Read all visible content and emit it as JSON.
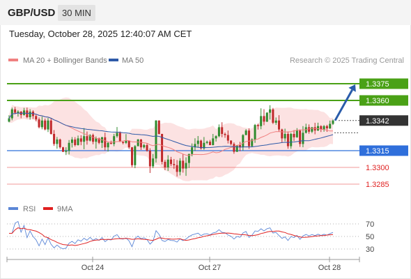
{
  "header": {
    "symbol": "GBP/USD",
    "timeframe": "30 MIN"
  },
  "timestamp": "Tuesday, October 28, 2025 12:40:07 AM CET",
  "legend": {
    "ma20_bb": {
      "label": "MA 20 + Bollinger Bands",
      "color": "#f08080"
    },
    "ma50": {
      "label": "MA 50",
      "color": "#2e5aa8"
    },
    "rsi": {
      "label": "RSI",
      "color": "#5b86d6"
    },
    "ma9": {
      "label": "9MA",
      "color": "#e02020"
    }
  },
  "copyright": "Research © 2025 Trading Central",
  "chart_data": [
    {
      "type": "candlestick",
      "series": [
        {
          "name": "MA 20 + Bollinger Bands"
        },
        {
          "name": "MA 50"
        }
      ],
      "x_ticks": [
        "Oct 24",
        "Oct 27",
        "Oct 28"
      ],
      "ylim": [
        1.327,
        1.339
      ],
      "grid": false,
      "colors": {
        "up": "#2e8b2e",
        "down": "#c0292b",
        "band": "#fbd8d8",
        "ma20": "#f08080",
        "ma50": "#2e5aa8"
      },
      "levels": [
        {
          "label": "1.3375",
          "value": 1.3375,
          "color": "#4aa116",
          "style": "resistance"
        },
        {
          "label": "1.3360",
          "value": 1.336,
          "color": "#4aa116",
          "style": "resistance"
        },
        {
          "label": "1.3342",
          "value": 1.3342,
          "color": "#333333",
          "style": "last"
        },
        {
          "label": "1.3315",
          "value": 1.3315,
          "color": "#2f6fdb",
          "style": "pivot"
        },
        {
          "label": "1.3300",
          "value": 1.33,
          "color": "#e02020",
          "style": "support"
        },
        {
          "label": "1.3285",
          "value": 1.3285,
          "color": "#e02020",
          "style": "support"
        }
      ],
      "forecast_arrow": {
        "from": 1.3342,
        "to": 1.3375,
        "color": "#2a5caa"
      },
      "closes": [
        1.3344,
        1.3352,
        1.3349,
        1.335,
        1.3347,
        1.3351,
        1.3345,
        1.335,
        1.3346,
        1.3343,
        1.3336,
        1.3342,
        1.3334,
        1.3342,
        1.333,
        1.3321,
        1.3325,
        1.3318,
        1.3314,
        1.3315,
        1.3322,
        1.3325,
        1.332,
        1.3326,
        1.3323,
        1.3328,
        1.3324,
        1.3329,
        1.3323,
        1.3326,
        1.3322,
        1.3327,
        1.3318,
        1.3322,
        1.3321,
        1.3328,
        1.3331,
        1.3323,
        1.3322,
        1.3324,
        1.3318,
        1.3302,
        1.3319,
        1.3325,
        1.3318,
        1.332,
        1.3315,
        1.3301,
        1.3308,
        1.3342,
        1.333,
        1.3305,
        1.33,
        1.3307,
        1.3303,
        1.3302,
        1.3296,
        1.3306,
        1.3299,
        1.3304,
        1.3312,
        1.3318,
        1.3321,
        1.3324,
        1.3317,
        1.3322,
        1.3323,
        1.332,
        1.3326,
        1.3328,
        1.3336,
        1.333,
        1.3329,
        1.3324,
        1.3321,
        1.3314,
        1.332,
        1.3318,
        1.3329,
        1.3333,
        1.3319,
        1.3325,
        1.3338,
        1.3337,
        1.3346,
        1.3341,
        1.3349,
        1.3352,
        1.334,
        1.3342,
        1.3334,
        1.3326,
        1.333,
        1.3319,
        1.333,
        1.3327,
        1.3333,
        1.3321,
        1.3331,
        1.3336,
        1.3332,
        1.3336,
        1.3333,
        1.3337,
        1.3334,
        1.3337,
        1.3335,
        1.3339,
        1.3342
      ]
    },
    {
      "type": "line",
      "series": [
        {
          "name": "RSI",
          "color": "#5b86d6"
        },
        {
          "name": "9MA",
          "color": "#e02020"
        }
      ],
      "y_ticks": [
        70,
        50,
        30
      ],
      "ylim": [
        20,
        80
      ]
    }
  ]
}
